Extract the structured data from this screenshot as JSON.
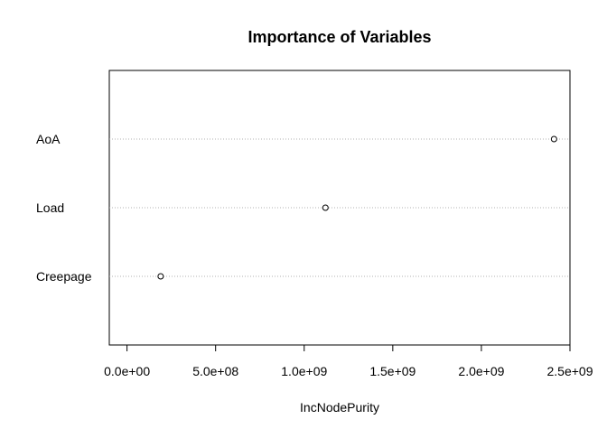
{
  "chart_data": {
    "type": "scatter",
    "subtype": "dotchart",
    "title": "Importance of Variables",
    "xlabel": "IncNodePurity",
    "ylabel": "",
    "categories": [
      "AoA",
      "Load",
      "Creepage"
    ],
    "values": [
      2410000000,
      1120000000,
      190000000
    ],
    "xlim": [
      -100000000,
      2500000000
    ],
    "x_ticks": [
      0,
      500000000,
      1000000000,
      1500000000,
      2000000000,
      2500000000
    ],
    "x_tick_labels": [
      "0.0e+00",
      "5.0e+08",
      "1.0e+09",
      "1.5e+09",
      "2.0e+09",
      "2.5e+09"
    ],
    "grid": "horizontal dotted guide lines per category",
    "legend": "none"
  }
}
